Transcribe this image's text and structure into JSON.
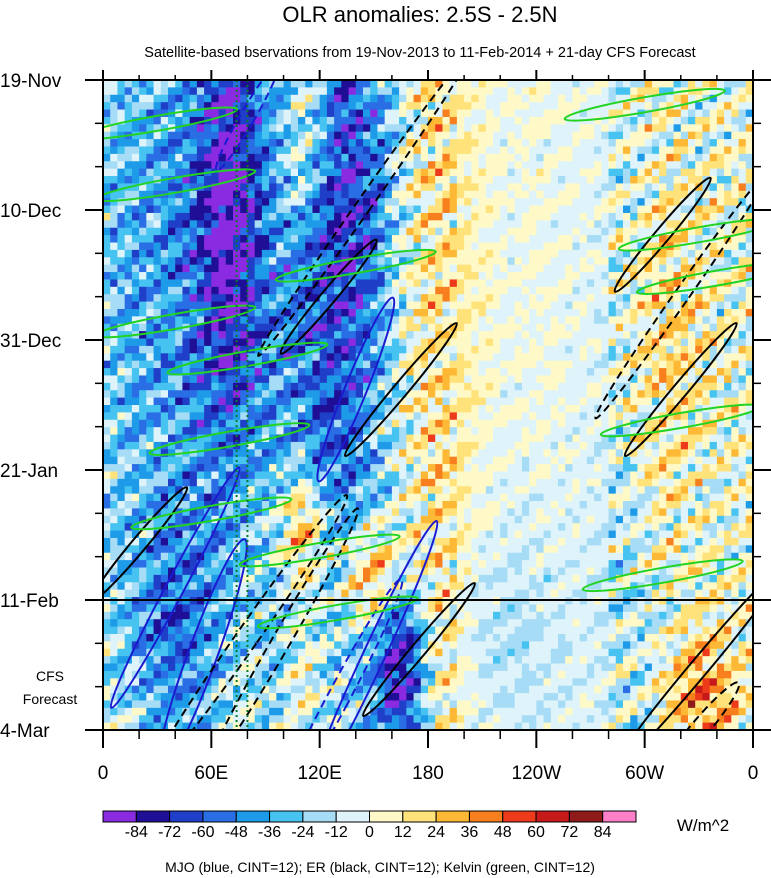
{
  "chart_data": {
    "type": "heatmap",
    "title": "OLR anomalies: 2.5S - 2.5N",
    "subtitle": "Satellite-based bservations from 19-Nov-2013 to 11-Feb-2014 + 21-day CFS Forecast",
    "x_axis": {
      "range_deg_east": [
        0,
        360
      ],
      "ticks": [
        {
          "lon": 0,
          "label": "0"
        },
        {
          "lon": 60,
          "label": "60E"
        },
        {
          "lon": 120,
          "label": "120E"
        },
        {
          "lon": 180,
          "label": "180"
        },
        {
          "lon": 240,
          "label": "120W"
        },
        {
          "lon": 300,
          "label": "60W"
        },
        {
          "lon": 360,
          "label": "0"
        }
      ]
    },
    "y_axis": {
      "range_days_since_19nov2013": [
        0,
        105
      ],
      "ticks": [
        {
          "day": 0,
          "label": "19-Nov"
        },
        {
          "day": 21,
          "label": "10-Dec"
        },
        {
          "day": 42,
          "label": "31-Dec"
        },
        {
          "day": 63,
          "label": "21-Jan"
        },
        {
          "day": 84,
          "label": "11-Feb"
        },
        {
          "day": 105,
          "label": "4-Mar"
        }
      ],
      "forecast_label_line1": "CFS",
      "forecast_label_line2": "Forecast",
      "observation_end_day": 84
    },
    "reference_longitudes_dotted": [
      74,
      80
    ],
    "colorbar": {
      "units": "W/m^2",
      "levels": [
        -84,
        -72,
        -60,
        -48,
        -36,
        -24,
        -12,
        0,
        12,
        24,
        36,
        48,
        60,
        72,
        84
      ],
      "colors": [
        "#8a2be2",
        "#1e0f96",
        "#1f3fc8",
        "#2a6ee6",
        "#1e9be8",
        "#46c3f0",
        "#a6dcf5",
        "#dff3fa",
        "#fff9c8",
        "#ffe37a",
        "#fdb935",
        "#f77f1e",
        "#ec3a1b",
        "#c61a1a",
        "#8f1a1a",
        "#ff7fc8"
      ]
    },
    "overlay_series": [
      {
        "name": "MJO",
        "color": "blue",
        "cint": 12
      },
      {
        "name": "ER",
        "color": "black",
        "cint": 12
      },
      {
        "name": "Kelvin",
        "color": "green",
        "cint": 12
      }
    ],
    "bands": [
      {
        "lon": 55,
        "day": 30,
        "value": -45,
        "sig_lon": 55,
        "sig_day": 40
      },
      {
        "lon": 130,
        "day": 55,
        "value": -40,
        "sig_lon": 20,
        "sig_day": 60
      },
      {
        "lon": 70,
        "day": 20,
        "value": -55,
        "sig_lon": 12,
        "sig_day": 25
      },
      {
        "lon": 165,
        "day": 95,
        "value": -80,
        "sig_lon": 10,
        "sig_day": 12
      },
      {
        "lon": 40,
        "day": 90,
        "value": -40,
        "sig_lon": 20,
        "sig_day": 15
      },
      {
        "lon": 110,
        "day": 72,
        "value": 55,
        "sig_lon": 10,
        "sig_day": 6
      },
      {
        "lon": 150,
        "day": 80,
        "value": 55,
        "sig_lon": 14,
        "sig_day": 6
      },
      {
        "lon": 110,
        "day": 95,
        "value": 30,
        "sig_lon": 20,
        "sig_day": 15
      },
      {
        "lon": 112,
        "day": 10,
        "value": 36,
        "sig_lon": 10,
        "sig_day": 10
      },
      {
        "lon": 185,
        "day": 50,
        "value": 20,
        "sig_lon": 15,
        "sig_day": 60
      },
      {
        "lon": 310,
        "day": 45,
        "value": 35,
        "sig_lon": 15,
        "sig_day": 25
      },
      {
        "lon": 330,
        "day": 100,
        "value": 40,
        "sig_lon": 15,
        "sig_day": 8
      },
      {
        "lon": 300,
        "day": 60,
        "value": -20,
        "sig_lon": 20,
        "sig_day": 50
      },
      {
        "lon": 140,
        "day": 15,
        "value": -30,
        "sig_lon": 15,
        "sig_day": 20
      },
      {
        "lon": 95,
        "day": 95,
        "value": -30,
        "sig_lon": 8,
        "sig_day": 15
      },
      {
        "lon": 225,
        "day": 90,
        "value": -15,
        "sig_lon": 25,
        "sig_day": 15
      }
    ]
  },
  "bottom_caption": "MJO (blue, CINT=12); ER (black, CINT=12); Kelvin (green, CINT=12)"
}
